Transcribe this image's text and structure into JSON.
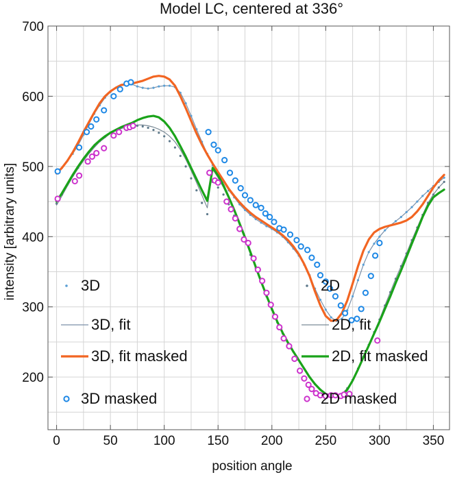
{
  "chart_data": {
    "type": "line",
    "title": "Model LC, centered at 336°",
    "xlabel": "position angle",
    "ylabel": "intensity [arbitrary units]",
    "xlim": [
      -8,
      365
    ],
    "ylim": [
      125,
      700
    ],
    "x_ticks": [
      0,
      50,
      100,
      150,
      200,
      250,
      300,
      350
    ],
    "y_ticks": [
      200,
      300,
      400,
      500,
      600,
      700
    ],
    "grid": true,
    "legend_placement": "inside, left column and right column overlapping plot",
    "series": [
      {
        "name": "3D",
        "style": "dots",
        "color": "#5a9fd4",
        "x": [
          0,
          5,
          10,
          15,
          20,
          25,
          30,
          35,
          40,
          45,
          50,
          55,
          60,
          65,
          70,
          75,
          80,
          85,
          90,
          95,
          100,
          105,
          110,
          115,
          120,
          125,
          130,
          135,
          140,
          145,
          150,
          155,
          160,
          165,
          170,
          175,
          180,
          185,
          190,
          195,
          200,
          205,
          210,
          215,
          220,
          225,
          230,
          235,
          240,
          245,
          250,
          255,
          260,
          265,
          270,
          275,
          280,
          285,
          290,
          295,
          300,
          305,
          310,
          315,
          320,
          325,
          330,
          335,
          340,
          345,
          350,
          355,
          360
        ],
        "y": [
          492,
          498,
          508,
          518,
          530,
          545,
          560,
          575,
          587,
          598,
          606,
          612,
          616,
          618,
          617,
          614,
          612,
          611,
          612,
          614,
          615,
          615,
          613,
          605,
          590,
          572,
          553,
          535,
          518,
          502,
          490,
          478,
          466,
          456,
          446,
          438,
          431,
          425,
          420,
          415,
          411,
          406,
          400,
          392,
          383,
          373,
          360,
          345,
          326,
          310,
          296,
          285,
          280,
          283,
          295,
          315,
          338,
          360,
          378,
          390,
          400,
          409,
          416,
          422,
          428,
          435,
          442,
          450,
          458,
          465,
          472,
          478,
          484
        ]
      },
      {
        "name": "3D, fit",
        "style": "thin-line",
        "color": "#7a8fa8",
        "x": [
          0,
          5,
          10,
          15,
          20,
          25,
          30,
          35,
          40,
          45,
          50,
          55,
          60,
          65,
          70,
          75,
          80,
          85,
          90,
          95,
          100,
          105,
          110,
          115,
          120,
          125,
          130,
          135,
          140,
          145,
          150,
          155,
          160,
          165,
          170,
          175,
          180,
          185,
          190,
          195,
          200,
          205,
          210,
          215,
          220,
          225,
          230,
          235,
          240,
          245,
          250,
          255,
          260,
          265,
          270,
          275,
          280,
          285,
          290,
          295,
          300,
          305,
          310,
          315,
          320,
          325,
          330,
          335,
          340,
          345,
          350,
          355,
          360
        ],
        "y": [
          492,
          498,
          508,
          518,
          530,
          545,
          560,
          575,
          587,
          598,
          606,
          612,
          616,
          618,
          617,
          614,
          612,
          611,
          612,
          614,
          615,
          615,
          613,
          605,
          590,
          572,
          553,
          535,
          518,
          502,
          490,
          478,
          466,
          456,
          446,
          438,
          431,
          425,
          420,
          415,
          411,
          406,
          400,
          392,
          383,
          373,
          360,
          345,
          326,
          310,
          296,
          285,
          280,
          283,
          295,
          315,
          338,
          360,
          378,
          390,
          400,
          409,
          416,
          422,
          428,
          435,
          442,
          450,
          458,
          465,
          472,
          478,
          484
        ]
      },
      {
        "name": "3D, fit masked",
        "style": "thick-line",
        "color": "#f26522",
        "x": [
          0,
          5,
          10,
          15,
          20,
          25,
          30,
          35,
          40,
          45,
          50,
          55,
          60,
          65,
          70,
          75,
          80,
          85,
          90,
          95,
          100,
          105,
          110,
          115,
          120,
          125,
          130,
          135,
          140,
          145,
          150,
          155,
          160,
          165,
          170,
          175,
          180,
          185,
          190,
          195,
          200,
          205,
          210,
          215,
          220,
          225,
          230,
          235,
          240,
          245,
          250,
          255,
          260,
          265,
          270,
          275,
          280,
          285,
          290,
          295,
          300,
          305,
          310,
          315,
          320,
          325,
          330,
          335,
          340,
          345,
          350,
          355,
          360
        ],
        "y": [
          490,
          498,
          508,
          520,
          534,
          549,
          563,
          577,
          590,
          600,
          607,
          612,
          616,
          617,
          618,
          620,
          622,
          625,
          628,
          629,
          628,
          624,
          615,
          600,
          583,
          565,
          547,
          531,
          517,
          504,
          492,
          480,
          468,
          458,
          449,
          441,
          434,
          428,
          423,
          418,
          413,
          408,
          402,
          395,
          386,
          375,
          361,
          344,
          322,
          302,
          287,
          280,
          281,
          291,
          309,
          333,
          358,
          380,
          396,
          406,
          411,
          414,
          416,
          418,
          420,
          423,
          428,
          436,
          446,
          458,
          470,
          480,
          488
        ]
      },
      {
        "name": "3D masked",
        "style": "open-circles",
        "color": "#1e88e5",
        "x": [
          1,
          21,
          28,
          32,
          37,
          44,
          53,
          59,
          65,
          69,
          141,
          146,
          150,
          156,
          161,
          166,
          171,
          175,
          180,
          185,
          190,
          194,
          198,
          202,
          207,
          211,
          217,
          223,
          227,
          233,
          237,
          242,
          245,
          250,
          254,
          259,
          264,
          268,
          274,
          279,
          283,
          287,
          292,
          296,
          300
        ],
        "y": [
          493,
          527,
          549,
          557,
          567,
          580,
          600,
          610,
          618,
          620,
          549,
          531,
          523,
          509,
          491,
          480,
          469,
          459,
          452,
          445,
          441,
          433,
          428,
          421,
          412,
          410,
          403,
          395,
          386,
          381,
          370,
          360,
          345,
          336,
          326,
          315,
          302,
          291,
          281,
          283,
          297,
          320,
          344,
          373,
          391
        ]
      },
      {
        "name": "2D",
        "style": "dots",
        "color": "#5f7a8c",
        "x": [
          0,
          5,
          10,
          15,
          20,
          25,
          30,
          35,
          40,
          45,
          50,
          55,
          60,
          65,
          70,
          75,
          80,
          85,
          90,
          95,
          100,
          105,
          110,
          115,
          120,
          125,
          130,
          135,
          140,
          145,
          150,
          155,
          160,
          165,
          170,
          175,
          180,
          185,
          190,
          195,
          200,
          205,
          210,
          215,
          220,
          225,
          230,
          235,
          240,
          245,
          250,
          255,
          260,
          265,
          270,
          275,
          280,
          285,
          290,
          295,
          300,
          305,
          310,
          315,
          320,
          325,
          330,
          335,
          340,
          345,
          350,
          355,
          360
        ],
        "y": [
          447,
          460,
          474,
          487,
          498,
          510,
          520,
          529,
          536,
          542,
          548,
          552,
          555,
          557,
          558,
          558,
          557,
          555,
          552,
          548,
          543,
          536,
          527,
          515,
          500,
          483,
          466,
          448,
          432,
          478,
          470,
          460,
          446,
          430,
          412,
          393,
          374,
          355,
          335,
          315,
          296,
          278,
          262,
          248,
          236,
          224,
          212,
          200,
          190,
          182,
          176,
          173,
          173,
          176,
          184,
          196,
          212,
          229,
          246,
          264,
          282,
          302,
          321,
          340,
          358,
          376,
          395,
          413,
          431,
          448,
          460,
          470,
          478
        ]
      },
      {
        "name": "2D, fit",
        "style": "thin-line",
        "color": "#7a8a96",
        "x": [
          0,
          5,
          10,
          15,
          20,
          25,
          30,
          35,
          40,
          45,
          50,
          55,
          60,
          65,
          70,
          75,
          80,
          85,
          90,
          95,
          100,
          105,
          110,
          115,
          120,
          125,
          130,
          135,
          140,
          145,
          150,
          155,
          160,
          165,
          170,
          175,
          180,
          185,
          190,
          195,
          200,
          205,
          210,
          215,
          220,
          225,
          230,
          235,
          240,
          245,
          250,
          255,
          260,
          265,
          270,
          275,
          280,
          285,
          290,
          295,
          300,
          305,
          310,
          315,
          320,
          325,
          330,
          335,
          340,
          345,
          350,
          355,
          360
        ],
        "y": [
          445,
          458,
          472,
          485,
          497,
          508,
          518,
          527,
          535,
          541,
          547,
          551,
          554,
          556,
          558,
          559,
          559,
          558,
          556,
          553,
          549,
          543,
          535,
          524,
          510,
          494,
          477,
          459,
          441,
          496,
          484,
          470,
          454,
          436,
          416,
          396,
          375,
          355,
          335,
          315,
          296,
          278,
          262,
          248,
          236,
          224,
          212,
          200,
          190,
          182,
          176,
          173,
          173,
          176,
          184,
          196,
          212,
          229,
          246,
          264,
          282,
          302,
          321,
          340,
          358,
          376,
          395,
          413,
          431,
          448,
          460,
          470,
          478
        ]
      },
      {
        "name": "2D, fit masked",
        "style": "thick-line",
        "color": "#1aa31a",
        "x": [
          0,
          5,
          10,
          15,
          20,
          25,
          30,
          35,
          40,
          45,
          50,
          55,
          60,
          65,
          70,
          75,
          80,
          85,
          90,
          95,
          100,
          105,
          110,
          115,
          120,
          125,
          130,
          135,
          140,
          145,
          150,
          155,
          160,
          165,
          170,
          175,
          180,
          185,
          190,
          195,
          200,
          205,
          210,
          215,
          220,
          225,
          230,
          235,
          240,
          245,
          250,
          255,
          260,
          265,
          270,
          275,
          280,
          285,
          290,
          295,
          300,
          305,
          310,
          315,
          320,
          325,
          330,
          335,
          340,
          345,
          350,
          355,
          360
        ],
        "y": [
          450,
          462,
          475,
          488,
          500,
          511,
          521,
          530,
          537,
          543,
          548,
          552,
          556,
          559,
          562,
          566,
          569,
          571,
          572,
          570,
          564,
          555,
          543,
          529,
          514,
          498,
          482,
          466,
          451,
          498,
          487,
          473,
          456,
          438,
          419,
          399,
          378,
          357,
          336,
          316,
          297,
          279,
          263,
          249,
          236,
          224,
          212,
          200,
          190,
          182,
          176,
          173,
          172,
          174,
          182,
          195,
          211,
          228,
          245,
          262,
          279,
          297,
          315,
          334,
          352,
          371,
          390,
          409,
          428,
          444,
          456,
          462,
          467
        ]
      },
      {
        "name": "2D masked",
        "style": "open-circles",
        "color": "#cc33cc",
        "x": [
          1,
          17,
          21,
          29,
          33,
          37,
          44,
          53,
          58,
          65,
          68,
          71,
          142,
          147,
          150,
          158,
          162,
          166,
          170,
          174,
          178,
          183,
          187,
          191,
          195,
          199,
          203,
          207,
          211,
          216,
          221,
          226,
          230,
          234,
          237,
          241,
          245,
          250,
          255,
          259,
          264,
          267,
          272,
          298
        ],
        "y": [
          454,
          479,
          487,
          507,
          514,
          519,
          526,
          544,
          549,
          555,
          556,
          558,
          491,
          480,
          477,
          450,
          439,
          426,
          411,
          396,
          391,
          369,
          353,
          337,
          320,
          303,
          286,
          271,
          255,
          244,
          226,
          209,
          198,
          189,
          183,
          177,
          174,
          173,
          174,
          174,
          173,
          175,
          176,
          252
        ]
      }
    ]
  }
}
